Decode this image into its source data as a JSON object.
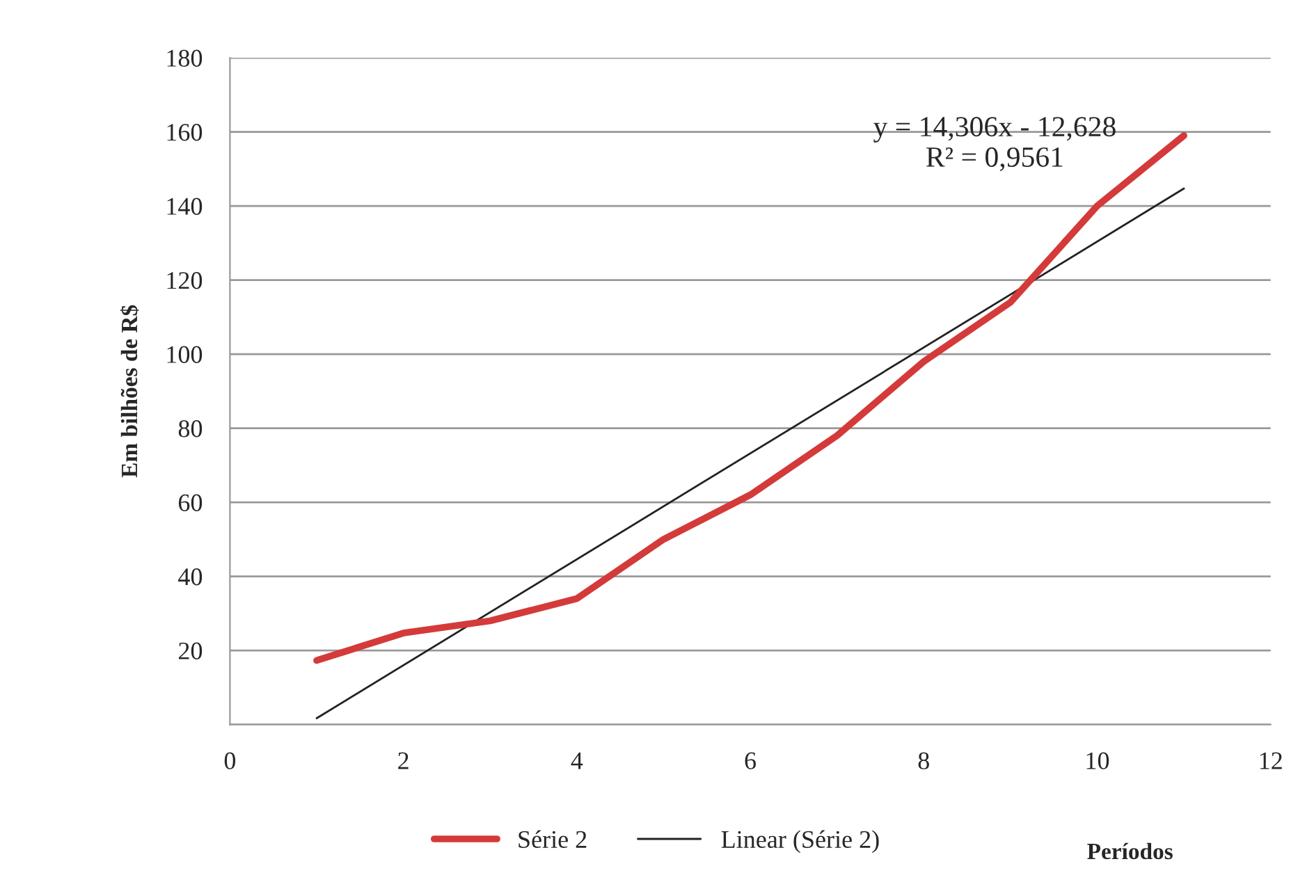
{
  "chart_data": {
    "type": "line",
    "xlabel": "Períodos",
    "ylabel": "Em bilhões de R$",
    "x": [
      1,
      2,
      3,
      4,
      5,
      6,
      7,
      8,
      9,
      10,
      11
    ],
    "series": [
      {
        "name": "Série 2",
        "color": "#d43a3a",
        "values": [
          17.3,
          24.7,
          28,
          34,
          50,
          62,
          78,
          98,
          114,
          140,
          159
        ]
      },
      {
        "name": "Linear (Série 2)",
        "color": "#222222",
        "type": "line",
        "x": [
          1,
          11
        ],
        "values": [
          1.7,
          144.7
        ]
      }
    ],
    "annotations": [
      "y = 14,306x - 12,628\nR² = 0,9561"
    ],
    "xlim": [
      0,
      12
    ],
    "xticks": [
      0,
      2,
      4,
      6,
      8,
      10,
      12
    ],
    "ylim": [
      0,
      180
    ],
    "yticks": [
      {
        "value": 0,
        "label": null
      },
      20,
      40,
      60,
      80,
      100,
      120,
      140,
      160,
      180
    ],
    "grid": "y",
    "legend": "bottom",
    "marker": "none",
    "line_style": "solid"
  }
}
